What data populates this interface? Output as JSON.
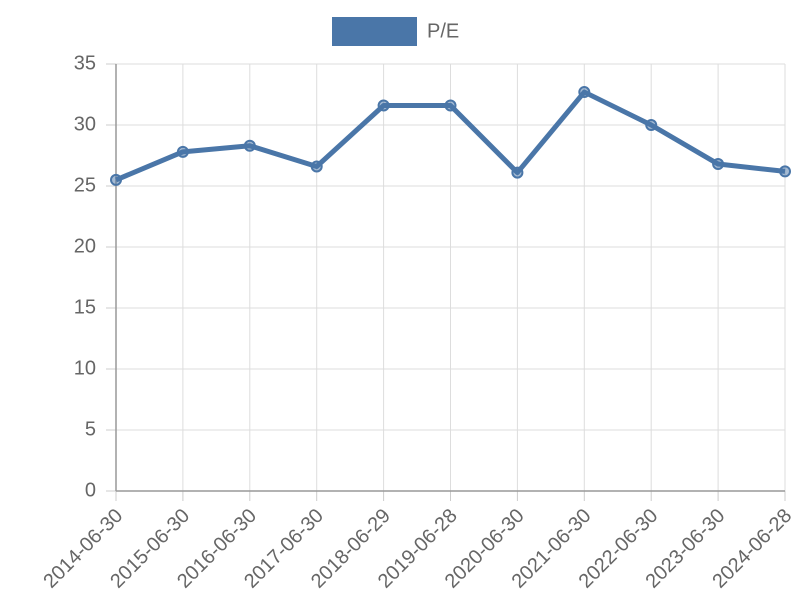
{
  "chart_data": {
    "type": "line",
    "categories": [
      "2014-06-30",
      "2015-06-30",
      "2016-06-30",
      "2017-06-30",
      "2018-06-29",
      "2019-06-28",
      "2020-06-30",
      "2021-06-30",
      "2022-06-30",
      "2023-06-30",
      "2024-06-28"
    ],
    "series": [
      {
        "name": "P/E",
        "color": "#4a76a8",
        "values": [
          25.5,
          27.8,
          28.3,
          26.6,
          31.6,
          31.6,
          26.1,
          32.7,
          30.0,
          26.8,
          26.2
        ]
      }
    ],
    "ylim": [
      0,
      35
    ],
    "yticks": [
      0,
      5,
      10,
      15,
      20,
      25,
      30,
      35
    ],
    "grid": true,
    "legend": "top"
  }
}
